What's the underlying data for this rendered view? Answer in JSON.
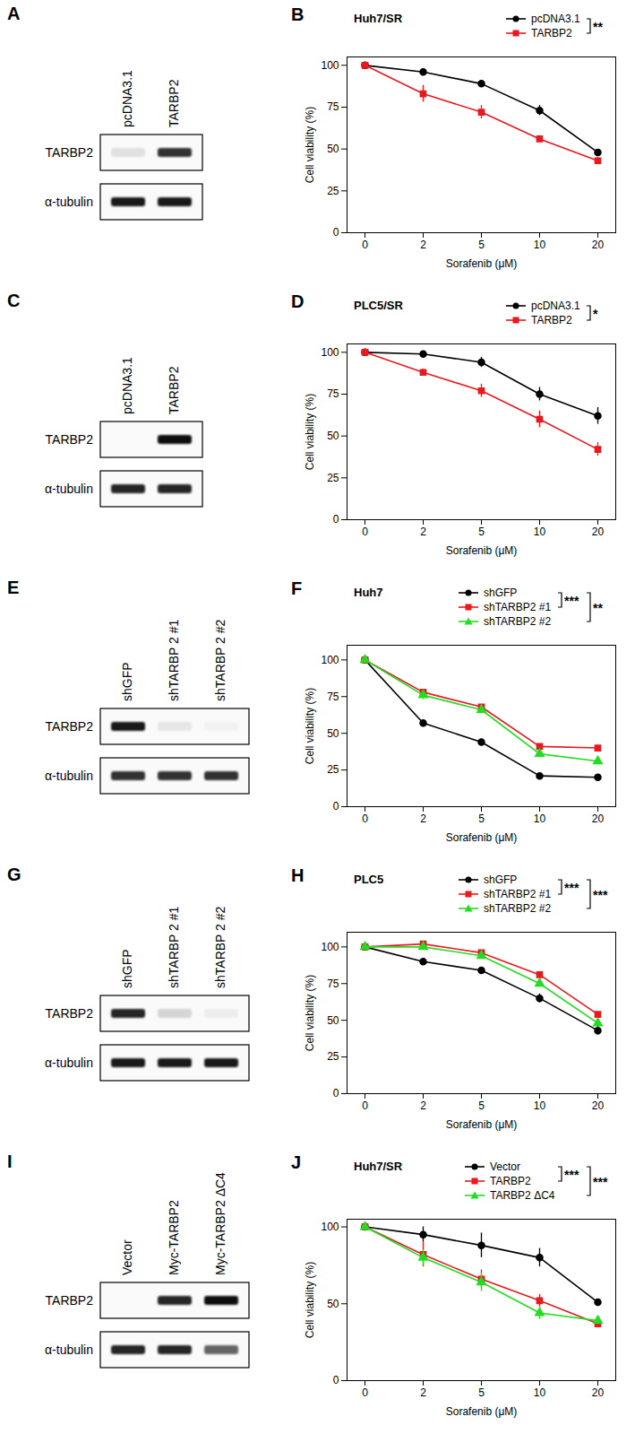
{
  "chart_data": [
    {
      "type": "line",
      "panel": "B",
      "title": "Huh7/SR",
      "x_label": "Sorafenib (μM)",
      "y_label": "Cell viability (%)",
      "categories": [
        "0",
        "2",
        "5",
        "10",
        "20"
      ],
      "ylim": [
        0,
        105
      ],
      "yticks": [
        0,
        25,
        50,
        75,
        100
      ],
      "grid": false,
      "series": [
        {
          "name": "pcDNA3.1",
          "color": "#000000",
          "marker": "circle",
          "values": [
            100,
            96,
            89,
            73,
            48
          ],
          "errors": [
            1,
            1,
            2,
            3,
            1
          ]
        },
        {
          "name": "TARBP2",
          "color": "#e8191f",
          "marker": "square",
          "values": [
            100,
            83,
            72,
            56,
            43
          ],
          "errors": [
            0,
            5,
            4,
            2,
            2
          ]
        }
      ],
      "significance": [
        {
          "series": [
            "pcDNA3.1",
            "TARBP2"
          ],
          "label": "**"
        }
      ]
    },
    {
      "type": "line",
      "panel": "D",
      "title": "PLC5/SR",
      "x_label": "Sorafenib (μM)",
      "y_label": "Cell viability (%)",
      "categories": [
        "0",
        "2",
        "5",
        "10",
        "20"
      ],
      "ylim": [
        0,
        105
      ],
      "yticks": [
        0,
        25,
        50,
        75,
        100
      ],
      "grid": false,
      "series": [
        {
          "name": "pcDNA3.1",
          "color": "#000000",
          "marker": "circle",
          "values": [
            100,
            99,
            94,
            75,
            62
          ],
          "errors": [
            0,
            1,
            3,
            4,
            5
          ]
        },
        {
          "name": "TARBP2",
          "color": "#e8191f",
          "marker": "square",
          "values": [
            100,
            88,
            77,
            60,
            42
          ],
          "errors": [
            0,
            2,
            4,
            5,
            4
          ]
        }
      ],
      "significance": [
        {
          "series": [
            "pcDNA3.1",
            "TARBP2"
          ],
          "label": "*"
        }
      ]
    },
    {
      "type": "line",
      "panel": "F",
      "title": "Huh7",
      "x_label": "Sorafenib (μM)",
      "y_label": "Cell viability (%)",
      "categories": [
        "0",
        "2",
        "5",
        "10",
        "20"
      ],
      "ylim": [
        0,
        110
      ],
      "yticks": [
        0,
        25,
        50,
        75,
        100
      ],
      "grid": false,
      "series": [
        {
          "name": "shGFP",
          "color": "#000000",
          "marker": "circle",
          "values": [
            100,
            57,
            44,
            21,
            20
          ],
          "errors": [
            0,
            2,
            2,
            1,
            1
          ]
        },
        {
          "name": "shTARBP2 #1",
          "color": "#e8191f",
          "marker": "square",
          "values": [
            100,
            78,
            68,
            41,
            40
          ],
          "errors": [
            0,
            1,
            1,
            1,
            1
          ]
        },
        {
          "name": "shTARBP2 #2",
          "color": "#22dd22",
          "marker": "triangle",
          "values": [
            100,
            76,
            66,
            36,
            31
          ],
          "errors": [
            0,
            3,
            2,
            2,
            2
          ]
        }
      ],
      "significance": [
        {
          "series": [
            "shGFP",
            "shTARBP2 #1"
          ],
          "label": "***"
        },
        {
          "series": [
            "shGFP",
            "shTARBP2 #2"
          ],
          "label": "**"
        }
      ]
    },
    {
      "type": "line",
      "panel": "H",
      "title": "PLC5",
      "x_label": "Sorafenib (μM)",
      "y_label": "Cell viability (%)",
      "categories": [
        "0",
        "2",
        "5",
        "10",
        "20"
      ],
      "ylim": [
        0,
        110
      ],
      "yticks": [
        0,
        25,
        50,
        75,
        100
      ],
      "grid": false,
      "series": [
        {
          "name": "shGFP",
          "color": "#000000",
          "marker": "circle",
          "values": [
            100,
            90,
            84,
            65,
            43
          ],
          "errors": [
            0,
            1,
            2,
            3,
            3
          ]
        },
        {
          "name": "shTARBP2 #1",
          "color": "#e8191f",
          "marker": "square",
          "values": [
            100,
            102,
            96,
            81,
            54
          ],
          "errors": [
            0,
            1,
            1,
            1,
            1
          ]
        },
        {
          "name": "shTARBP2 #2",
          "color": "#22dd22",
          "marker": "triangle",
          "values": [
            100,
            100,
            94,
            75,
            48
          ],
          "errors": [
            0,
            1,
            2,
            2,
            2
          ]
        }
      ],
      "significance": [
        {
          "series": [
            "shGFP",
            "shTARBP2 #1"
          ],
          "label": "***"
        },
        {
          "series": [
            "shGFP",
            "shTARBP2 #2"
          ],
          "label": "***"
        }
      ]
    },
    {
      "type": "line",
      "panel": "J",
      "title": "Huh7/SR",
      "x_label": "Sorafenib (μM)",
      "y_label": "Cell viability (%)",
      "categories": [
        "0",
        "2",
        "5",
        "10",
        "20"
      ],
      "ylim": [
        0,
        105
      ],
      "yticks": [
        0,
        50,
        100
      ],
      "grid": false,
      "series": [
        {
          "name": "Vector",
          "color": "#000000",
          "marker": "circle",
          "values": [
            100,
            95,
            88,
            80,
            51
          ],
          "errors": [
            0,
            5,
            8,
            6,
            2
          ]
        },
        {
          "name": "TARBP2",
          "color": "#e8191f",
          "marker": "square",
          "values": [
            100,
            82,
            66,
            52,
            37
          ],
          "errors": [
            0,
            8,
            6,
            4,
            2
          ]
        },
        {
          "name": "TARBP2 ΔC4",
          "color": "#22dd22",
          "marker": "triangle",
          "values": [
            100,
            80,
            64,
            44,
            39
          ],
          "errors": [
            0,
            5,
            6,
            4,
            2
          ]
        }
      ],
      "significance": [
        {
          "series": [
            "Vector",
            "TARBP2"
          ],
          "label": "***"
        },
        {
          "series": [
            "Vector",
            "TARBP2 ΔC4"
          ],
          "label": "***"
        }
      ]
    }
  ],
  "blots": [
    {
      "panel": "A",
      "lanes": [
        "pcDNA3.1",
        "TARBP2"
      ],
      "rows": [
        {
          "label": "TARBP2",
          "intensity": [
            0.1,
            0.8
          ]
        },
        {
          "label": "α-tubulin",
          "intensity": [
            0.9,
            0.9
          ]
        }
      ]
    },
    {
      "panel": "C",
      "lanes": [
        "pcDNA3.1",
        "TARBP2"
      ],
      "rows": [
        {
          "label": "TARBP2",
          "intensity": [
            0,
            0.95
          ]
        },
        {
          "label": "α-tubulin",
          "intensity": [
            0.85,
            0.85
          ]
        }
      ]
    },
    {
      "panel": "E",
      "lanes": [
        "shGFP",
        "shTARBP 2 #1",
        "shTARBP 2 #2"
      ],
      "rows": [
        {
          "label": "TARBP2",
          "intensity": [
            0.9,
            0.08,
            0.03
          ]
        },
        {
          "label": "α-tubulin",
          "intensity": [
            0.8,
            0.8,
            0.8
          ]
        }
      ]
    },
    {
      "panel": "G",
      "lanes": [
        "shGFP",
        "shTARBP 2 #1",
        "shTARBP 2 #2"
      ],
      "rows": [
        {
          "label": "TARBP2",
          "intensity": [
            0.85,
            0.15,
            0.05
          ]
        },
        {
          "label": "α-tubulin",
          "intensity": [
            0.9,
            0.9,
            0.9
          ]
        }
      ]
    },
    {
      "panel": "I",
      "lanes": [
        "Vector",
        "Myc-TARBP2",
        "Myc-TARBP2 ΔC4"
      ],
      "rows": [
        {
          "label": "TARBP2",
          "intensity": [
            0,
            0.85,
            0.95
          ]
        },
        {
          "label": "α-tubulin",
          "intensity": [
            0.85,
            0.85,
            0.6
          ]
        }
      ]
    }
  ]
}
